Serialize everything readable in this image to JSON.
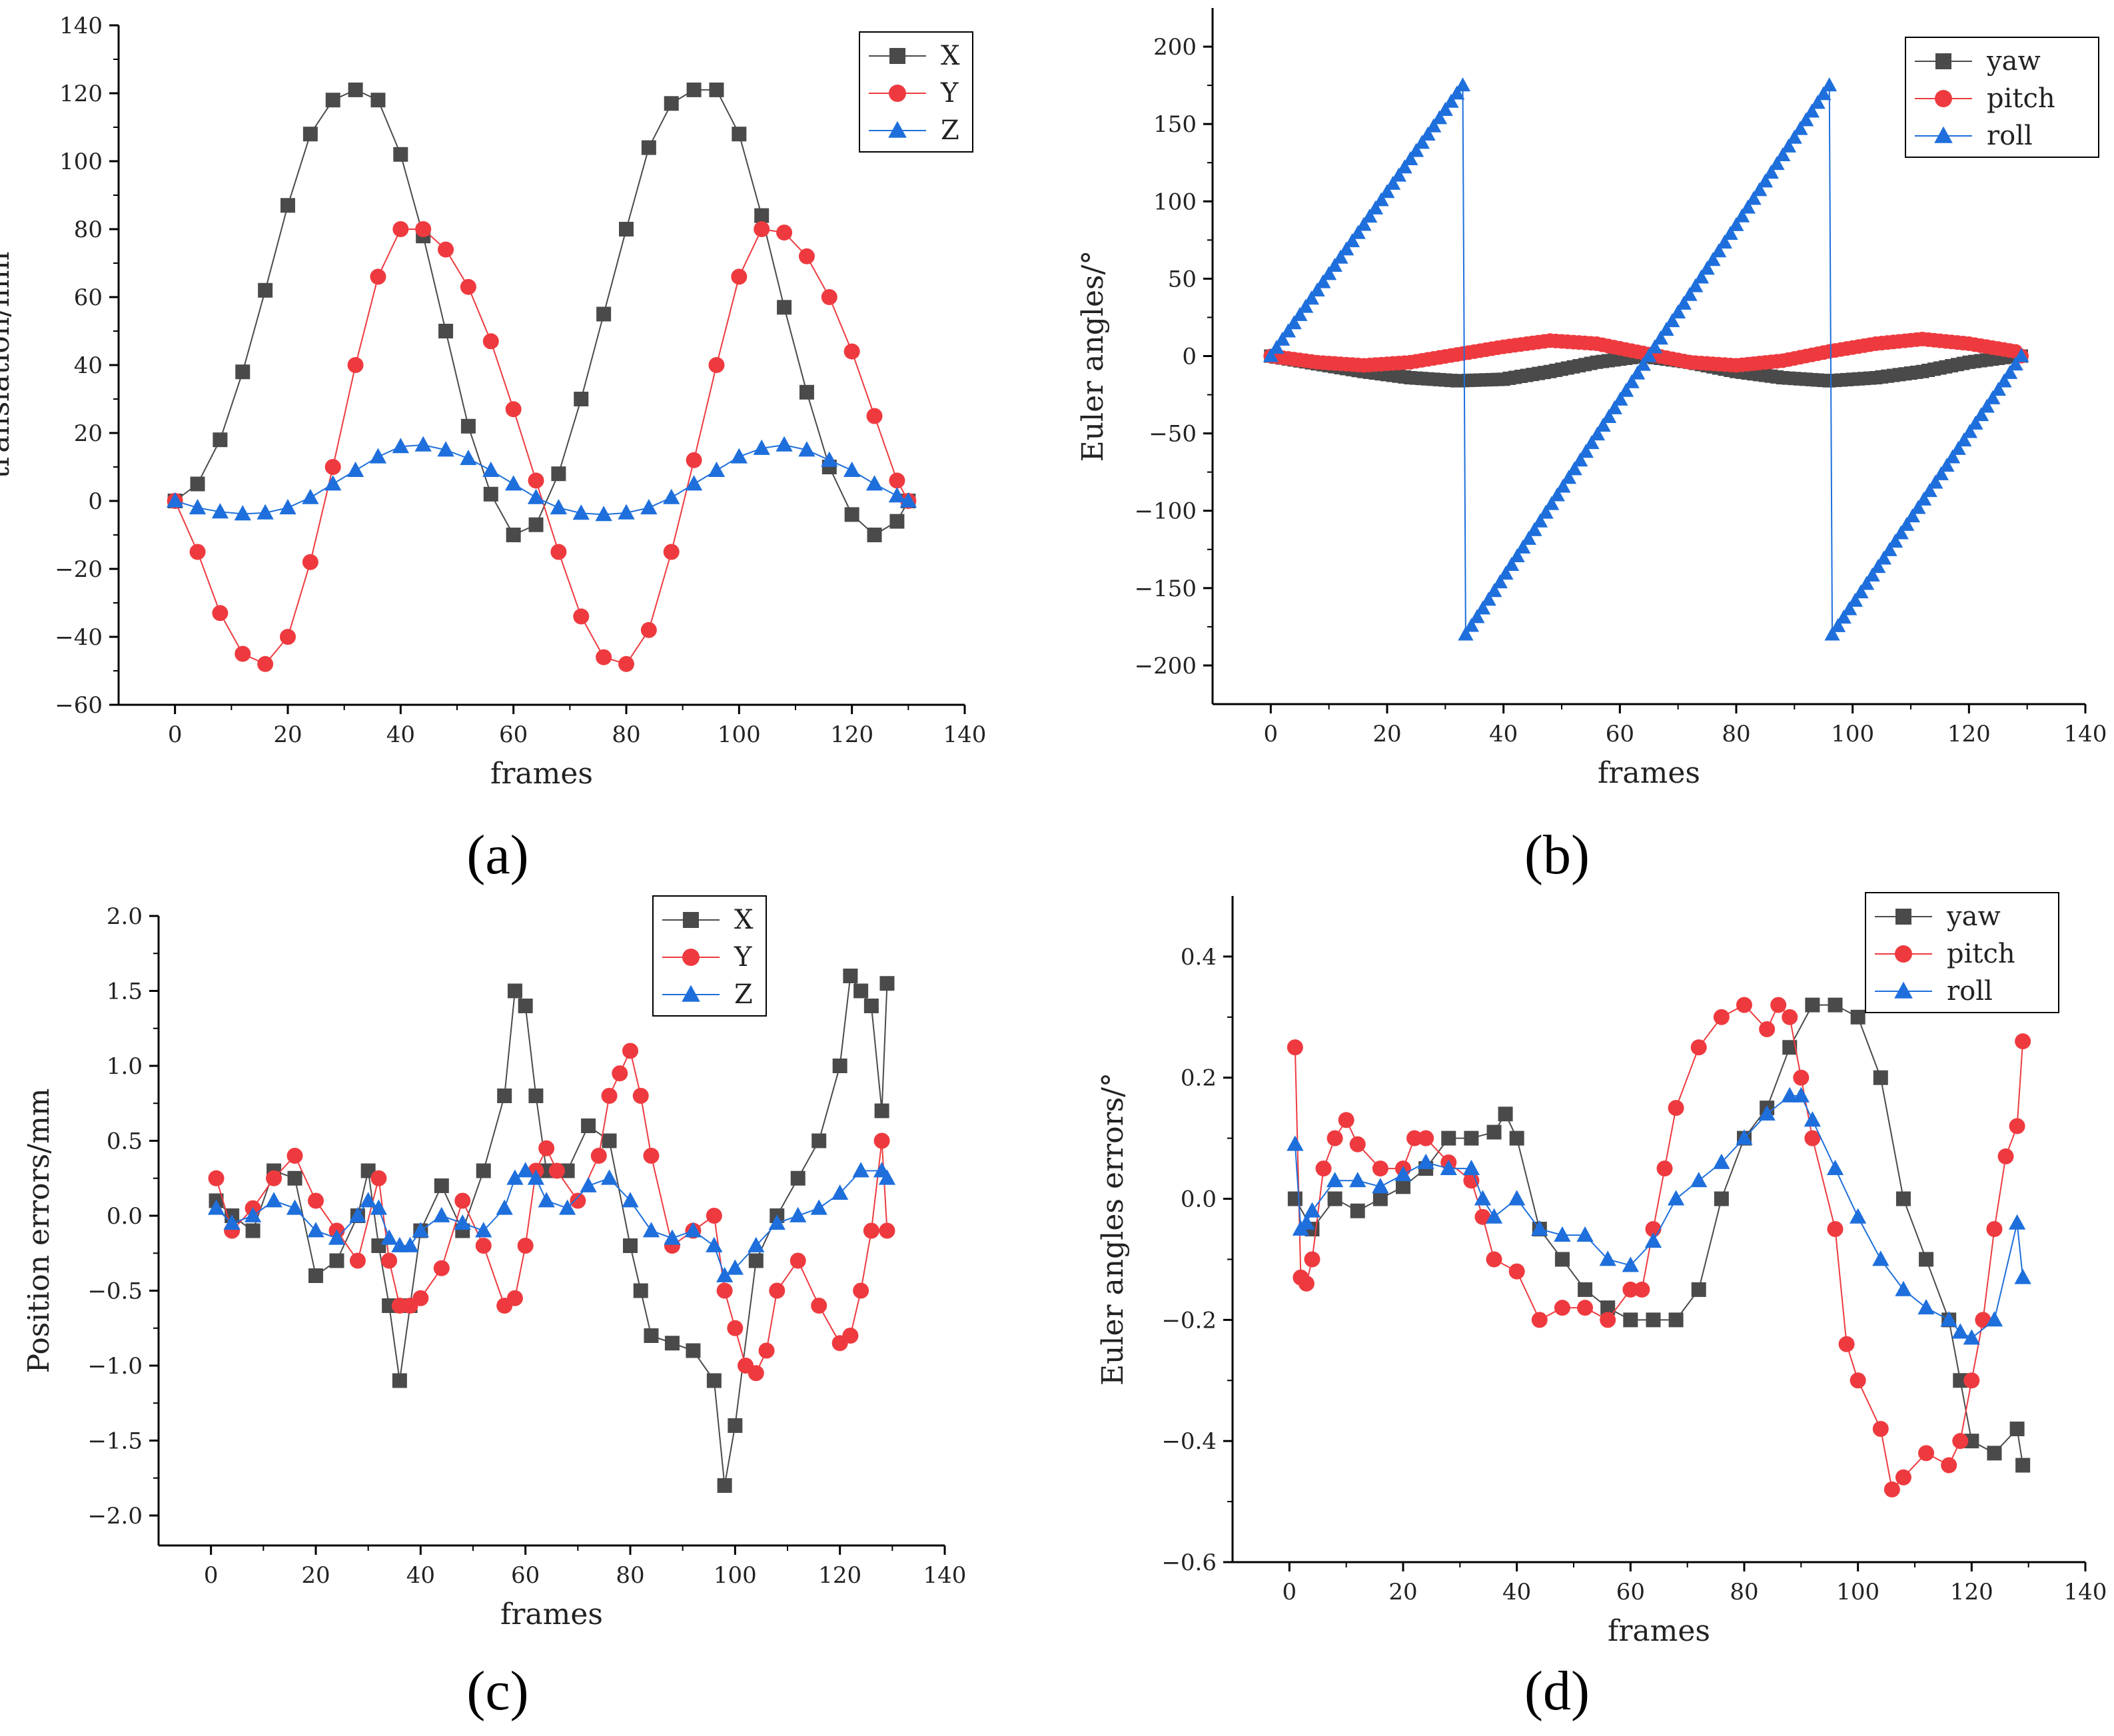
{
  "figure": {
    "panel_labels": [
      "(a)",
      "(b)",
      "(c)",
      "(d)"
    ]
  },
  "colors": {
    "X": "#4a4a4a",
    "Y": "#ee3a3f",
    "Z": "#1e6fdc",
    "axis": "#000000"
  },
  "chart_data": [
    {
      "id": "a",
      "type": "scatter",
      "title": "",
      "xlabel": "frames",
      "ylabel": "translation/mm",
      "xlim": [
        -10,
        140
      ],
      "ylim": [
        -60,
        140
      ],
      "xticks": [
        0,
        20,
        40,
        60,
        80,
        100,
        120,
        140
      ],
      "xtick_labels": [
        "0",
        "20",
        "40",
        "60",
        "80",
        "100",
        "120",
        "140"
      ],
      "yticks": [
        -60,
        -40,
        -20,
        0,
        20,
        40,
        60,
        80,
        100,
        120,
        140
      ],
      "ytick_labels": [
        "−60",
        "−40",
        "−20",
        "0",
        "20",
        "40",
        "60",
        "80",
        "100",
        "120",
        "140"
      ],
      "legend": {
        "position": "top-right",
        "entries": [
          "X",
          "Y",
          "Z"
        ]
      },
      "series": [
        {
          "name": "X",
          "marker": "square",
          "color": "#4a4a4a",
          "x": [
            0,
            4,
            8,
            12,
            16,
            20,
            24,
            28,
            32,
            36,
            40,
            44,
            48,
            52,
            56,
            60,
            64,
            68,
            72,
            76,
            80,
            84,
            88,
            92,
            96,
            100,
            104,
            108,
            112,
            116,
            120,
            124,
            128,
            130
          ],
          "y": [
            0,
            5,
            18,
            38,
            62,
            87,
            108,
            118,
            121,
            118,
            102,
            78,
            50,
            22,
            2,
            -10,
            -7,
            8,
            30,
            55,
            80,
            104,
            117,
            121,
            121,
            108,
            84,
            57,
            32,
            10,
            -4,
            -10,
            -6,
            0
          ]
        },
        {
          "name": "Y",
          "marker": "circle",
          "color": "#ee3a3f",
          "x": [
            0,
            4,
            8,
            12,
            16,
            20,
            24,
            28,
            32,
            36,
            40,
            44,
            48,
            52,
            56,
            60,
            64,
            68,
            72,
            76,
            80,
            84,
            88,
            92,
            96,
            100,
            104,
            108,
            112,
            116,
            120,
            124,
            128,
            130
          ],
          "y": [
            0,
            -15,
            -33,
            -45,
            -48,
            -40,
            -18,
            10,
            40,
            66,
            80,
            80,
            74,
            63,
            47,
            27,
            6,
            -15,
            -34,
            -46,
            -48,
            -38,
            -15,
            12,
            40,
            66,
            80,
            79,
            72,
            60,
            44,
            25,
            6,
            0
          ]
        },
        {
          "name": "Z",
          "marker": "triangle",
          "color": "#1e6fdc",
          "x": [
            0,
            4,
            8,
            12,
            16,
            20,
            24,
            28,
            32,
            36,
            40,
            44,
            48,
            52,
            56,
            60,
            64,
            68,
            72,
            76,
            80,
            84,
            88,
            92,
            96,
            100,
            104,
            108,
            112,
            116,
            120,
            124,
            128,
            130
          ],
          "y": [
            0,
            -2,
            -3.2,
            -3.8,
            -3.5,
            -2,
            1,
            5,
            9,
            13,
            16,
            16.5,
            15,
            12.5,
            9,
            5,
            1,
            -2,
            -3.6,
            -4,
            -3.5,
            -2,
            1,
            5,
            9,
            13,
            15.5,
            16.5,
            15,
            12,
            9,
            5,
            1.5,
            0
          ]
        }
      ]
    },
    {
      "id": "b",
      "type": "line",
      "title": "",
      "xlabel": "frames",
      "ylabel": "Euler angles/°",
      "xlim": [
        -10,
        140
      ],
      "ylim": [
        -225,
        225
      ],
      "xticks": [
        0,
        20,
        40,
        60,
        80,
        100,
        120,
        140
      ],
      "xtick_labels": [
        "0",
        "20",
        "40",
        "60",
        "80",
        "100",
        "120",
        "140"
      ],
      "yticks": [
        -200,
        -150,
        -100,
        -50,
        0,
        50,
        100,
        150,
        200
      ],
      "ytick_labels": [
        "−200",
        "−150",
        "−100",
        "−50",
        "0",
        "50",
        "100",
        "150",
        "200"
      ],
      "legend": {
        "position": "top-right",
        "entries": [
          "yaw",
          "pitch",
          "roll"
        ]
      },
      "series": [
        {
          "name": "yaw",
          "marker": "square",
          "color": "#4a4a4a",
          "x": [
            0,
            8,
            16,
            24,
            32,
            40,
            48,
            56,
            64,
            72,
            80,
            88,
            96,
            104,
            112,
            120,
            128,
            129
          ],
          "y": [
            0,
            -5,
            -10,
            -14,
            -16,
            -15,
            -10,
            -4,
            0,
            -4,
            -10,
            -14,
            -16,
            -14,
            -10,
            -4,
            0,
            0
          ]
        },
        {
          "name": "pitch",
          "marker": "circle",
          "color": "#ee3a3f",
          "x": [
            0,
            8,
            16,
            24,
            32,
            40,
            48,
            56,
            64,
            72,
            80,
            88,
            96,
            104,
            112,
            120,
            128,
            129
          ],
          "y": [
            0,
            -4,
            -6,
            -4,
            1,
            6,
            10,
            8,
            2,
            -4,
            -6,
            -3,
            3,
            8,
            11,
            8,
            3,
            0
          ]
        },
        {
          "name": "roll",
          "marker": "triangle",
          "color": "#1e6fdc",
          "x": [
            0,
            33,
            33.5,
            65,
            96,
            96.5,
            129
          ],
          "y": [
            0,
            175,
            -180,
            0,
            175,
            -180,
            0
          ]
        }
      ]
    },
    {
      "id": "c",
      "type": "scatter",
      "title": "",
      "xlabel": "frames",
      "ylabel": "Position errors/mm",
      "xlim": [
        -10,
        140
      ],
      "ylim": [
        -2.2,
        2.0
      ],
      "xticks": [
        0,
        20,
        40,
        60,
        80,
        100,
        120,
        140
      ],
      "xtick_labels": [
        "0",
        "20",
        "40",
        "60",
        "80",
        "100",
        "120",
        "140"
      ],
      "yticks": [
        -2.0,
        -1.5,
        -1.0,
        -0.5,
        0.0,
        0.5,
        1.0,
        1.5,
        2.0
      ],
      "ytick_labels": [
        "−2.0",
        "−1.5",
        "−1.0",
        "−0.5",
        "0.0",
        "0.5",
        "1.0",
        "1.5",
        "2.0"
      ],
      "legend": {
        "position": "top-center",
        "entries": [
          "X",
          "Y",
          "Z"
        ]
      },
      "series": [
        {
          "name": "X",
          "marker": "square",
          "color": "#4a4a4a",
          "x": [
            1,
            4,
            8,
            12,
            16,
            20,
            24,
            28,
            30,
            32,
            34,
            36,
            38,
            40,
            44,
            48,
            52,
            56,
            58,
            60,
            62,
            64,
            68,
            72,
            76,
            80,
            82,
            84,
            88,
            92,
            96,
            98,
            100,
            104,
            108,
            112,
            116,
            120,
            122,
            124,
            126,
            128,
            129
          ],
          "y": [
            0.1,
            0.0,
            -0.1,
            0.3,
            0.25,
            -0.4,
            -0.3,
            0.0,
            0.3,
            -0.2,
            -0.6,
            -1.1,
            -0.6,
            -0.1,
            0.2,
            -0.1,
            0.3,
            0.8,
            1.5,
            1.4,
            0.8,
            0.3,
            0.3,
            0.6,
            0.5,
            -0.2,
            -0.5,
            -0.8,
            -0.85,
            -0.9,
            -1.1,
            -1.8,
            -1.4,
            -0.3,
            0.0,
            0.25,
            0.5,
            1.0,
            1.6,
            1.5,
            1.4,
            0.7,
            1.55
          ]
        },
        {
          "name": "Y",
          "marker": "circle",
          "color": "#ee3a3f",
          "x": [
            1,
            4,
            8,
            12,
            16,
            20,
            24,
            28,
            32,
            34,
            36,
            38,
            40,
            44,
            48,
            52,
            56,
            58,
            60,
            62,
            64,
            66,
            70,
            74,
            76,
            78,
            80,
            82,
            84,
            88,
            92,
            96,
            98,
            100,
            102,
            104,
            106,
            108,
            112,
            116,
            120,
            122,
            124,
            126,
            128,
            129
          ],
          "y": [
            0.25,
            -0.1,
            0.05,
            0.25,
            0.4,
            0.1,
            -0.1,
            -0.3,
            0.25,
            -0.3,
            -0.6,
            -0.6,
            -0.55,
            -0.35,
            0.1,
            -0.2,
            -0.6,
            -0.55,
            -0.2,
            0.3,
            0.45,
            0.3,
            0.1,
            0.4,
            0.8,
            0.95,
            1.1,
            0.8,
            0.4,
            -0.2,
            -0.1,
            0.0,
            -0.5,
            -0.75,
            -1.0,
            -1.05,
            -0.9,
            -0.5,
            -0.3,
            -0.6,
            -0.85,
            -0.8,
            -0.5,
            -0.1,
            0.5,
            -0.1
          ]
        },
        {
          "name": "Z",
          "marker": "triangle",
          "color": "#1e6fdc",
          "x": [
            1,
            4,
            8,
            12,
            16,
            20,
            24,
            28,
            30,
            32,
            34,
            36,
            38,
            40,
            44,
            48,
            52,
            56,
            58,
            60,
            62,
            64,
            68,
            72,
            76,
            80,
            84,
            88,
            92,
            96,
            98,
            100,
            104,
            108,
            112,
            116,
            120,
            124,
            128,
            129
          ],
          "y": [
            0.05,
            -0.05,
            0.0,
            0.1,
            0.05,
            -0.1,
            -0.15,
            0.0,
            0.1,
            0.05,
            -0.15,
            -0.2,
            -0.2,
            -0.1,
            0.0,
            -0.05,
            -0.1,
            0.05,
            0.25,
            0.3,
            0.25,
            0.1,
            0.05,
            0.2,
            0.25,
            0.1,
            -0.1,
            -0.15,
            -0.1,
            -0.2,
            -0.4,
            -0.35,
            -0.2,
            -0.05,
            0.0,
            0.05,
            0.15,
            0.3,
            0.3,
            0.25
          ]
        }
      ]
    },
    {
      "id": "d",
      "type": "scatter",
      "title": "",
      "xlabel": "frames",
      "ylabel": "Euler angles errors/°",
      "xlim": [
        -10,
        140
      ],
      "ylim": [
        -0.6,
        0.5
      ],
      "xticks": [
        0,
        20,
        40,
        60,
        80,
        100,
        120,
        140
      ],
      "xtick_labels": [
        "0",
        "20",
        "40",
        "60",
        "80",
        "100",
        "120",
        "140"
      ],
      "yticks": [
        -0.6,
        -0.4,
        -0.2,
        0.0,
        0.2,
        0.4
      ],
      "ytick_labels": [
        "−0.6",
        "−0.4",
        "−0.2",
        "0.0",
        "0.2",
        "0.4"
      ],
      "legend": {
        "position": "top-right",
        "entries": [
          "yaw",
          "pitch",
          "roll"
        ]
      },
      "series": [
        {
          "name": "yaw",
          "marker": "square",
          "color": "#4a4a4a",
          "x": [
            1,
            4,
            8,
            12,
            16,
            20,
            24,
            28,
            32,
            36,
            38,
            40,
            44,
            48,
            52,
            56,
            60,
            64,
            68,
            72,
            76,
            80,
            84,
            88,
            92,
            96,
            100,
            104,
            108,
            112,
            116,
            118,
            120,
            124,
            128,
            129
          ],
          "y": [
            0.0,
            -0.05,
            0.0,
            -0.02,
            0.0,
            0.02,
            0.05,
            0.1,
            0.1,
            0.11,
            0.14,
            0.1,
            -0.05,
            -0.1,
            -0.15,
            -0.18,
            -0.2,
            -0.2,
            -0.2,
            -0.15,
            0.0,
            0.1,
            0.15,
            0.25,
            0.32,
            0.32,
            0.3,
            0.2,
            0.0,
            -0.1,
            -0.2,
            -0.3,
            -0.4,
            -0.42,
            -0.38,
            -0.44
          ]
        },
        {
          "name": "pitch",
          "marker": "circle",
          "color": "#ee3a3f",
          "x": [
            1,
            2,
            3,
            4,
            6,
            8,
            10,
            12,
            16,
            20,
            22,
            24,
            28,
            32,
            34,
            36,
            40,
            44,
            48,
            52,
            56,
            60,
            62,
            64,
            66,
            68,
            72,
            76,
            80,
            84,
            86,
            88,
            90,
            92,
            96,
            98,
            100,
            104,
            106,
            108,
            112,
            116,
            118,
            120,
            122,
            124,
            126,
            128,
            129
          ],
          "y": [
            0.25,
            -0.13,
            -0.14,
            -0.1,
            0.05,
            0.1,
            0.13,
            0.09,
            0.05,
            0.05,
            0.1,
            0.1,
            0.06,
            0.03,
            -0.03,
            -0.1,
            -0.12,
            -0.2,
            -0.18,
            -0.18,
            -0.2,
            -0.15,
            -0.15,
            -0.05,
            0.05,
            0.15,
            0.25,
            0.3,
            0.32,
            0.28,
            0.32,
            0.3,
            0.2,
            0.1,
            -0.05,
            -0.24,
            -0.3,
            -0.38,
            -0.48,
            -0.46,
            -0.42,
            -0.44,
            -0.4,
            -0.3,
            -0.2,
            -0.05,
            0.07,
            0.12,
            0.26
          ]
        },
        {
          "name": "roll",
          "marker": "triangle",
          "color": "#1e6fdc",
          "x": [
            1,
            2,
            3,
            4,
            8,
            12,
            16,
            20,
            24,
            28,
            32,
            34,
            36,
            40,
            44,
            48,
            52,
            56,
            60,
            64,
            68,
            72,
            76,
            80,
            84,
            88,
            90,
            92,
            96,
            100,
            104,
            108,
            112,
            116,
            118,
            120,
            124,
            128,
            129
          ],
          "y": [
            0.09,
            -0.05,
            -0.04,
            -0.02,
            0.03,
            0.03,
            0.02,
            0.04,
            0.06,
            0.05,
            0.05,
            0.0,
            -0.03,
            0.0,
            -0.05,
            -0.06,
            -0.06,
            -0.1,
            -0.11,
            -0.07,
            0.0,
            0.03,
            0.06,
            0.1,
            0.14,
            0.17,
            0.17,
            0.13,
            0.05,
            -0.03,
            -0.1,
            -0.15,
            -0.18,
            -0.2,
            -0.22,
            -0.23,
            -0.2,
            -0.04,
            -0.13
          ]
        }
      ]
    }
  ]
}
